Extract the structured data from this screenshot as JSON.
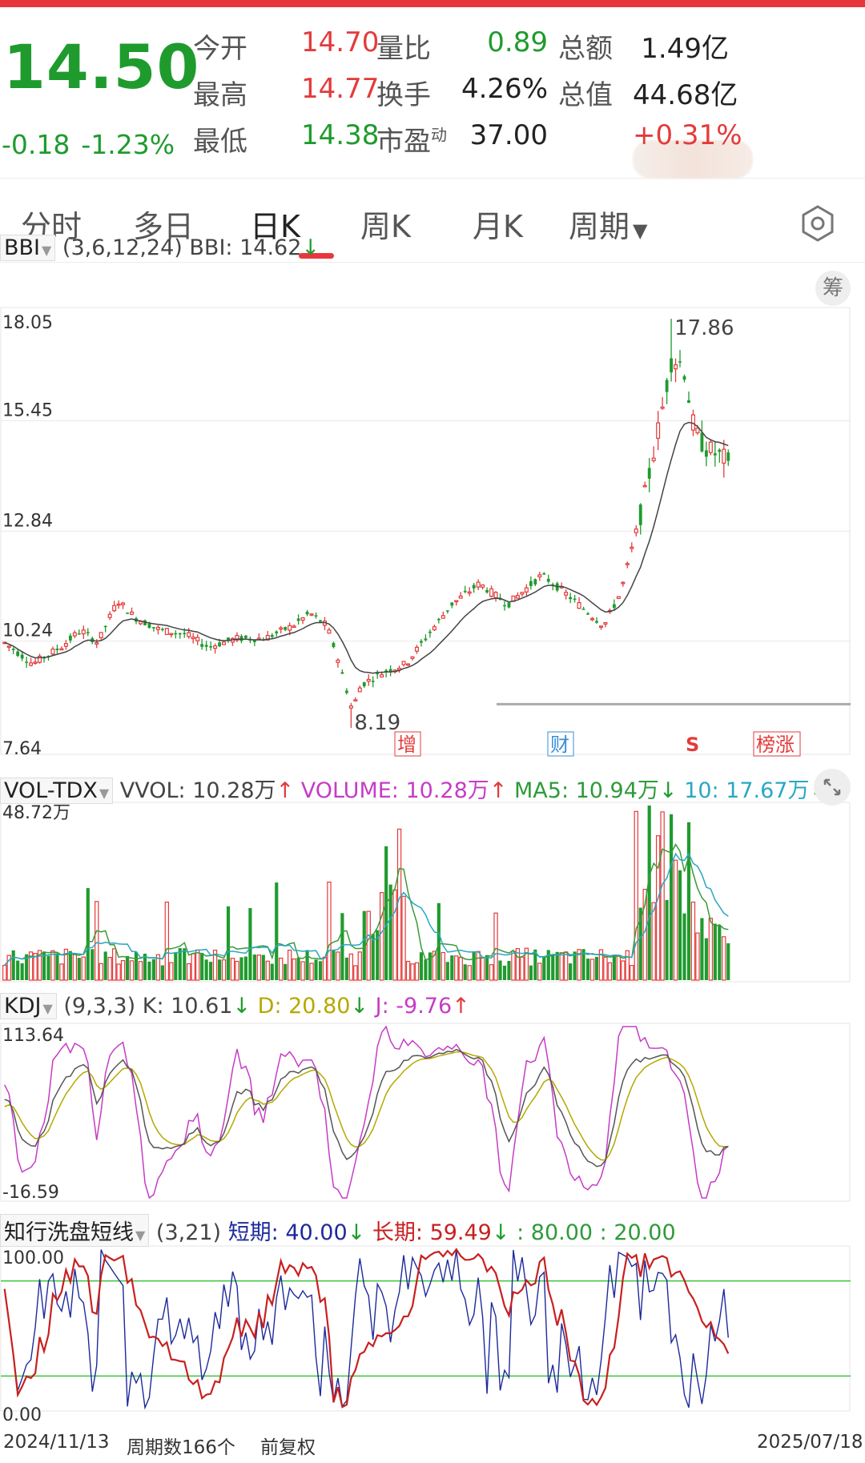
{
  "quote": {
    "price": "14.50",
    "change": "-0.18",
    "change_pct": "-1.23%",
    "stats": [
      {
        "label": "今开",
        "value": "14.70",
        "color": "#e33b3b"
      },
      {
        "label": "最高",
        "value": "14.77",
        "color": "#e33b3b"
      },
      {
        "label": "最低",
        "value": "14.38",
        "color": "#1f9b2e"
      },
      {
        "label": "量比",
        "value": "0.89",
        "color": "#1f9b2e"
      },
      {
        "label": "换手",
        "value": "4.26%",
        "color": "#222222"
      },
      {
        "label": "市盈",
        "sup": "动",
        "value": "37.00",
        "color": "#222222"
      },
      {
        "label": "总额",
        "value": "1.49亿",
        "color": "#222222"
      },
      {
        "label": "总值",
        "value": "44.68亿",
        "color": "#222222"
      },
      {
        "label": "",
        "value": "+0.31%",
        "color": "#e33b3b"
      }
    ]
  },
  "tabs": [
    "分时",
    "多日",
    "日K",
    "周K",
    "月K",
    "周期"
  ],
  "active_tab": "日K",
  "bbi": {
    "name": "BBI",
    "params": "(3,6,12,24)",
    "label": "BBI: 14.62",
    "arrow": "↓",
    "chip": "筹",
    "y_ticks": [
      "18.05",
      "15.45",
      "12.84",
      "10.24",
      "7.64"
    ],
    "high_label": "17.86",
    "low_label": "8.19",
    "markers": [
      "增",
      "财",
      "S",
      "榜涨"
    ]
  },
  "vol": {
    "name": "VOL-TDX",
    "vvol": "VVOL: 10.28万",
    "volume": "VOLUME: 10.28万",
    "ma5": "MA5: 10.94万",
    "ma10": "10: 17.67万",
    "top_label": "48.72万"
  },
  "kdj": {
    "name": "KDJ",
    "params": "(9,3,3)",
    "k": "K: 10.61",
    "d": "D: 20.80",
    "j": "J: -9.76",
    "top": "113.64",
    "bottom": "-16.59"
  },
  "zx": {
    "name": "知行洗盘短线",
    "params": "(3,21)",
    "short": "短期: 40.00",
    "long": "长期: 59.49",
    "l80": ": 80.00",
    "l20": ": 20.00",
    "top": "100.00",
    "bottom": "0.00"
  },
  "footer": {
    "start": "2024/11/13",
    "count": "周期数166个",
    "adj": "前复权",
    "end": "2025/07/18"
  },
  "chart_data": {
    "type": "candlestick",
    "ylim": [
      7.64,
      18.05
    ],
    "y_ticks": [
      18.05,
      15.45,
      12.84,
      10.24,
      7.64
    ],
    "x_range": [
      "2024/11/13",
      "2025/07/18"
    ],
    "bars": 166,
    "price_anchors": [
      [
        0,
        10.2
      ],
      [
        10,
        9.7
      ],
      [
        20,
        10.1
      ],
      [
        27,
        10.5
      ],
      [
        33,
        10.2
      ],
      [
        40,
        11.2
      ],
      [
        46,
        10.8
      ],
      [
        55,
        10.5
      ],
      [
        64,
        10.4
      ],
      [
        72,
        10.1
      ],
      [
        82,
        10.3
      ],
      [
        92,
        10.3
      ],
      [
        102,
        10.6
      ],
      [
        108,
        10.9
      ],
      [
        114,
        10.6
      ],
      [
        118,
        9.8
      ],
      [
        123,
        8.6
      ],
      [
        126,
        9.2
      ],
      [
        134,
        9.5
      ],
      [
        142,
        9.7
      ],
      [
        150,
        10.4
      ],
      [
        158,
        11.1
      ],
      [
        168,
        11.6
      ],
      [
        178,
        11.1
      ],
      [
        190,
        11.8
      ],
      [
        196,
        11.5
      ],
      [
        205,
        11.0
      ],
      [
        212,
        10.6
      ],
      [
        218,
        11.4
      ],
      [
        226,
        13.5
      ],
      [
        232,
        15.5
      ],
      [
        236,
        16.9
      ],
      [
        240,
        16.8
      ],
      [
        244,
        15.2
      ],
      [
        248,
        14.8
      ],
      [
        256,
        14.5
      ]
    ],
    "extremes": {
      "high": 17.86,
      "low": 8.19
    },
    "volume_max": 48.72,
    "kdj_range": [
      -16.59,
      113.64
    ],
    "zx_range": [
      0,
      100
    ],
    "zx_levels": [
      80,
      20
    ]
  }
}
